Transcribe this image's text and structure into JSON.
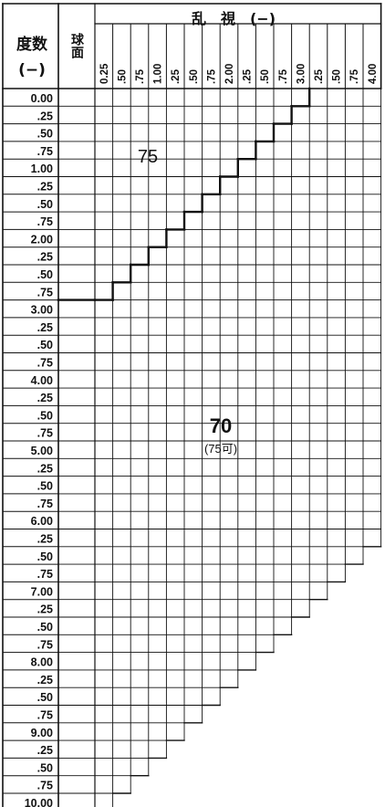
{
  "table": {
    "header": {
      "sphere_power_label": "度数",
      "sphere_power_unit": "(−)",
      "sphere_label": "球面",
      "astigmatism_label": "乱　視　(−)"
    },
    "row_labels": [
      "0.00",
      ".25",
      ".50",
      ".75",
      "1.00",
      ".25",
      ".50",
      ".75",
      "2.00",
      ".25",
      ".50",
      ".75",
      "3.00",
      ".25",
      ".50",
      ".75",
      "4.00",
      ".25",
      ".50",
      ".75",
      "5.00",
      ".25",
      ".50",
      ".75",
      "6.00",
      ".25",
      ".50",
      ".75",
      "7.00",
      ".25",
      ".50",
      ".75",
      "8.00",
      ".25",
      ".50",
      ".75",
      "9.00",
      ".25",
      ".50",
      ".75",
      "10.00"
    ],
    "col_labels": [
      "0.25",
      ".50",
      ".75",
      "1.00",
      ".25",
      ".50",
      ".75",
      "2.00",
      ".25",
      ".50",
      ".75",
      "3.00",
      ".25",
      ".50",
      ".75",
      "4.00"
    ],
    "zone_upper_label": "75",
    "zone_lower_label": "70",
    "zone_lower_note": "(75可)"
  },
  "colors": {
    "grid": "#111111",
    "background": "#ffffff"
  }
}
